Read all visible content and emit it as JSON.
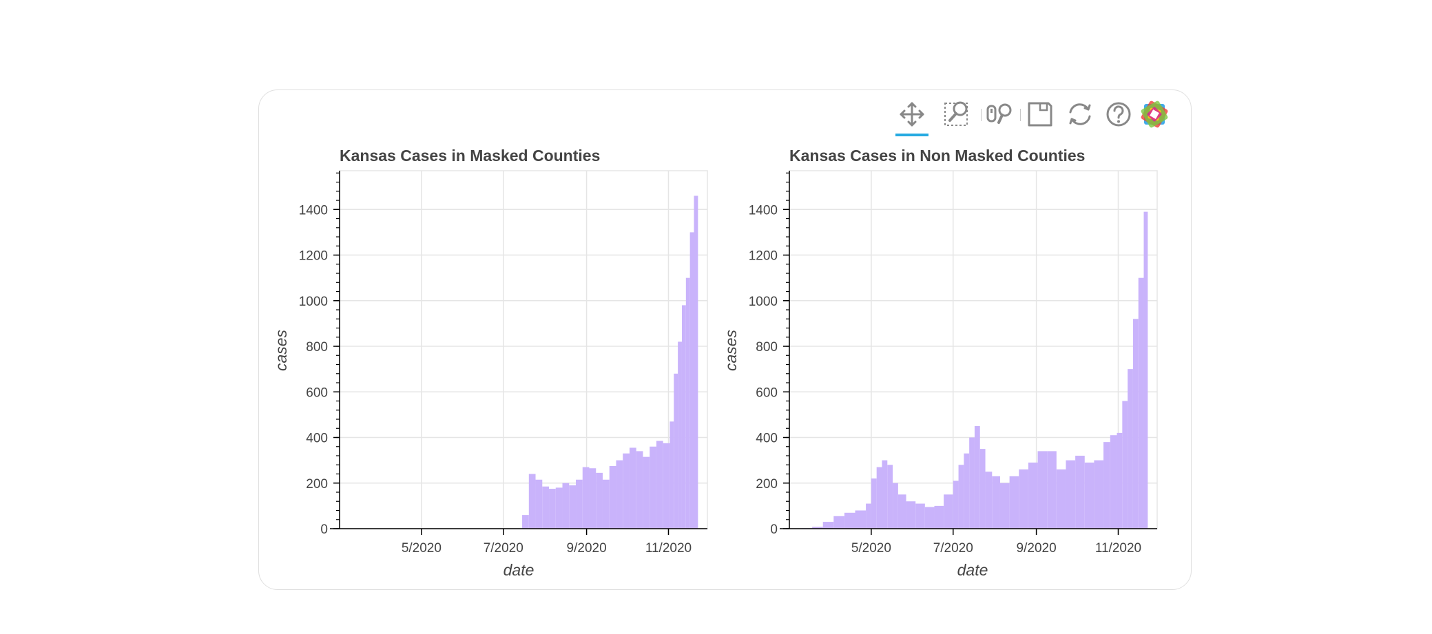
{
  "toolbar": {
    "tools": [
      {
        "name": "pan",
        "icon": "pan-icon",
        "active": true
      },
      {
        "name": "box-zoom",
        "icon": "box-zoom-icon",
        "active": false
      },
      {
        "name": "wheel-zoom",
        "icon": "wheel-zoom-icon",
        "active": false
      },
      {
        "name": "save",
        "icon": "save-icon",
        "active": false
      },
      {
        "name": "reset",
        "icon": "reset-icon",
        "active": false
      },
      {
        "name": "help",
        "icon": "help-icon",
        "active": false
      },
      {
        "name": "bokeh-logo",
        "icon": "bokeh-logo-icon",
        "active": false
      }
    ],
    "accent_color": "#26aae1"
  },
  "chart_data": [
    {
      "type": "bar",
      "title": "Kansas Cases in Masked Counties",
      "xlabel": "date",
      "ylabel": "cases",
      "xlim": [
        "2020-03-01",
        "2020-11-30"
      ],
      "ylim": [
        0,
        1570
      ],
      "x_ticks": [
        "5/2020",
        "7/2020",
        "9/2020",
        "11/2020"
      ],
      "y_ticks": [
        "0",
        "200",
        "400",
        "600",
        "800",
        "1000",
        "1200",
        "1400"
      ],
      "grid": true,
      "color": "#c9b3fb",
      "series": [
        {
          "x": [
            "2020-07-15",
            "2020-07-20",
            "2020-07-25",
            "2020-07-30",
            "2020-08-04",
            "2020-08-09",
            "2020-08-14",
            "2020-08-19",
            "2020-08-24",
            "2020-08-29",
            "2020-09-03",
            "2020-09-08",
            "2020-09-13",
            "2020-09-18",
            "2020-09-23",
            "2020-09-28",
            "2020-10-03",
            "2020-10-08",
            "2020-10-13",
            "2020-10-18",
            "2020-10-23",
            "2020-10-28",
            "2020-11-02",
            "2020-11-05",
            "2020-11-08",
            "2020-11-11",
            "2020-11-14",
            "2020-11-17",
            "2020-11-20"
          ],
          "values": [
            60,
            240,
            215,
            185,
            175,
            180,
            200,
            190,
            215,
            270,
            265,
            245,
            215,
            275,
            300,
            330,
            355,
            340,
            315,
            360,
            385,
            375,
            470,
            680,
            820,
            980,
            1100,
            1300,
            1460
          ]
        }
      ]
    },
    {
      "type": "bar",
      "title": "Kansas Cases in Non Masked Counties",
      "xlabel": "date",
      "ylabel": "cases",
      "xlim": [
        "2020-03-01",
        "2020-11-30"
      ],
      "ylim": [
        0,
        1570
      ],
      "x_ticks": [
        "5/2020",
        "7/2020",
        "9/2020",
        "11/2020"
      ],
      "y_ticks": [
        "0",
        "200",
        "400",
        "600",
        "800",
        "1000",
        "1200",
        "1400"
      ],
      "grid": true,
      "color": "#c9b3fb",
      "series": [
        {
          "x": [
            "2020-03-10",
            "2020-03-18",
            "2020-03-26",
            "2020-04-03",
            "2020-04-11",
            "2020-04-19",
            "2020-04-27",
            "2020-05-01",
            "2020-05-05",
            "2020-05-09",
            "2020-05-13",
            "2020-05-17",
            "2020-05-21",
            "2020-05-27",
            "2020-06-03",
            "2020-06-10",
            "2020-06-17",
            "2020-06-24",
            "2020-07-01",
            "2020-07-05",
            "2020-07-09",
            "2020-07-13",
            "2020-07-17",
            "2020-07-21",
            "2020-07-25",
            "2020-07-30",
            "2020-08-05",
            "2020-08-12",
            "2020-08-19",
            "2020-08-26",
            "2020-09-02",
            "2020-09-09",
            "2020-09-16",
            "2020-09-23",
            "2020-09-30",
            "2020-10-07",
            "2020-10-14",
            "2020-10-21",
            "2020-10-26",
            "2020-10-31",
            "2020-11-04",
            "2020-11-08",
            "2020-11-12",
            "2020-11-16",
            "2020-11-20"
          ],
          "values": [
            2,
            8,
            30,
            55,
            70,
            80,
            110,
            220,
            270,
            300,
            280,
            200,
            150,
            120,
            110,
            95,
            100,
            150,
            210,
            280,
            330,
            400,
            450,
            350,
            250,
            230,
            200,
            230,
            260,
            290,
            340,
            340,
            260,
            300,
            320,
            290,
            300,
            380,
            410,
            420,
            560,
            700,
            920,
            1100,
            1390
          ]
        }
      ]
    }
  ]
}
